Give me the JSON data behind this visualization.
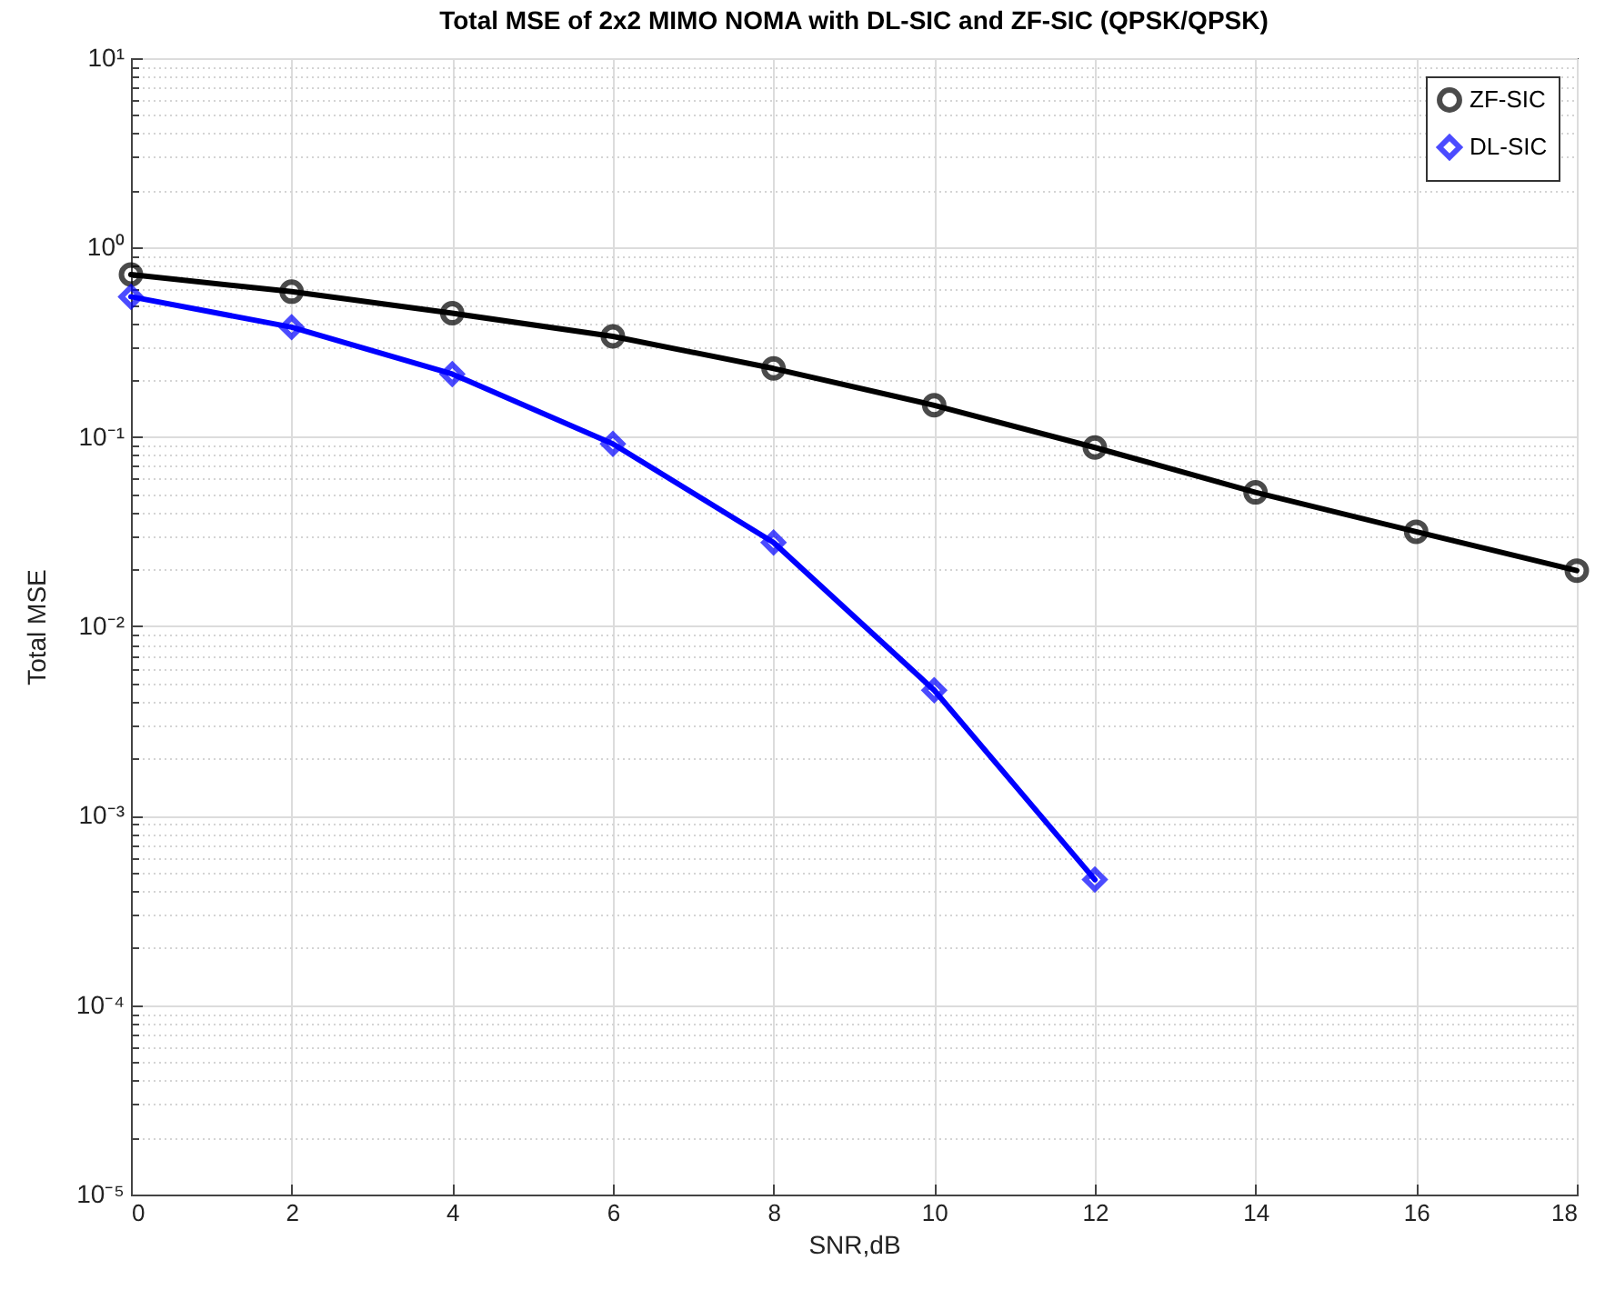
{
  "chart_data": {
    "type": "line",
    "title": "Total MSE of 2x2 MIMO NOMA with DL-SIC and ZF-SIC (QPSK/QPSK)",
    "xlabel": "SNR,dB",
    "ylabel": "Total MSE",
    "x": [
      0,
      2,
      4,
      6,
      8,
      10,
      12,
      14,
      16,
      18
    ],
    "series": [
      {
        "name": "ZF-SIC",
        "color": "#000000",
        "marker": "circle",
        "values": [
          0.72,
          0.585,
          0.45,
          0.34,
          0.23,
          0.147,
          0.088,
          0.051,
          0.0316,
          0.0197
        ]
      },
      {
        "name": "DL-SIC",
        "color": "#0000ff",
        "marker": "diamond",
        "x": [
          0,
          2,
          4,
          6,
          8,
          10,
          12
        ],
        "values": [
          0.55,
          0.38,
          0.215,
          0.092,
          0.0277,
          0.0046,
          0.00046
        ]
      }
    ],
    "xlim": [
      0,
      18
    ],
    "xticks": [
      0,
      2,
      4,
      6,
      8,
      10,
      12,
      14,
      16,
      18
    ],
    "ylim": [
      1e-05,
      10
    ],
    "yticks": [
      {
        "value": 1e-05,
        "label": "10⁻⁵"
      },
      {
        "value": 0.0001,
        "label": "10⁻⁴"
      },
      {
        "value": 0.001,
        "label": "10⁻³"
      },
      {
        "value": 0.01,
        "label": "10⁻²"
      },
      {
        "value": 0.1,
        "label": "10⁻¹"
      },
      {
        "value": 1,
        "label": "10⁰"
      },
      {
        "value": 10,
        "label": "10¹"
      }
    ],
    "log": "y",
    "grid": true,
    "legend": "top right",
    "line_style": "solid"
  }
}
